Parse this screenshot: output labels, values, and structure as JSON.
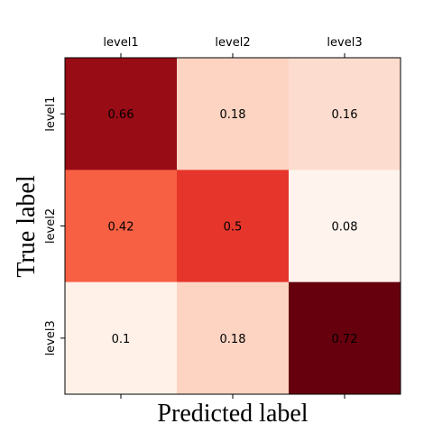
{
  "chart_data": {
    "type": "heatmap",
    "xlabel": "Predicted label",
    "ylabel": "True label",
    "x_categories": [
      "level1",
      "level2",
      "level3"
    ],
    "y_categories": [
      "level1",
      "level2",
      "level3"
    ],
    "values": [
      [
        0.66,
        0.18,
        0.16
      ],
      [
        0.42,
        0.5,
        0.08
      ],
      [
        0.1,
        0.18,
        0.72
      ]
    ],
    "cell_text": [
      [
        "0.66",
        "0.18",
        "0.16"
      ],
      [
        "0.42",
        "0.5",
        "0.08"
      ],
      [
        "0.1",
        "0.18",
        "0.72"
      ]
    ],
    "x_tick_position": "top",
    "colormap": "Reds",
    "value_range": [
      0.08,
      0.72
    ],
    "colors": [
      [
        "#980c15",
        "#fdd4c2",
        "#fcdcce"
      ],
      [
        "#f86044",
        "#e6362c",
        "#fff3ed"
      ],
      [
        "#fff0e8",
        "#fdd4c2",
        "#67000d"
      ]
    ],
    "grid": false,
    "legend": "none"
  }
}
